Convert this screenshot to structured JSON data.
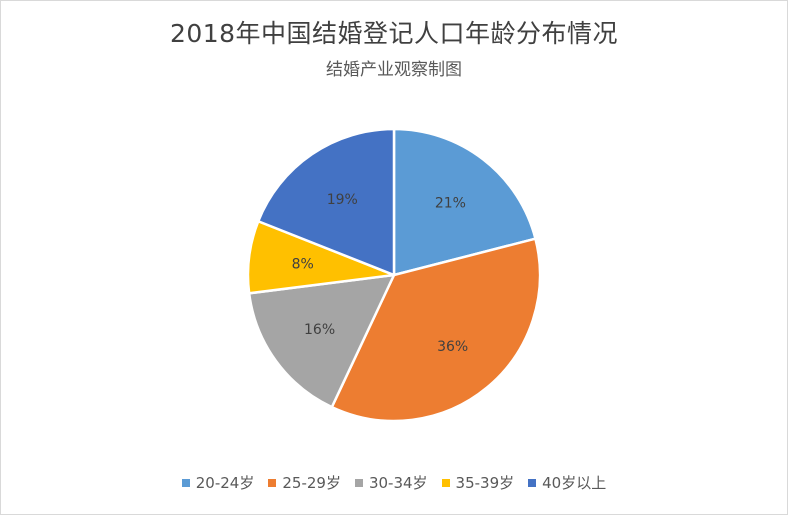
{
  "chart_data": {
    "type": "pie",
    "title": "2018年中国结婚登记人口年龄分布情况",
    "subtitle": "结婚产业观察制图",
    "categories": [
      "20-24岁",
      "25-29岁",
      "30-34岁",
      "35-39岁",
      "40岁以上"
    ],
    "values": [
      21,
      36,
      16,
      8,
      19
    ],
    "labels": [
      "21%",
      "36%",
      "16%",
      "8%",
      "19%"
    ],
    "colors": [
      "#5B9BD5",
      "#ED7D31",
      "#A5A5A5",
      "#FFC000",
      "#4472C4"
    ],
    "legend_position": "bottom",
    "start": "top, clockwise"
  }
}
